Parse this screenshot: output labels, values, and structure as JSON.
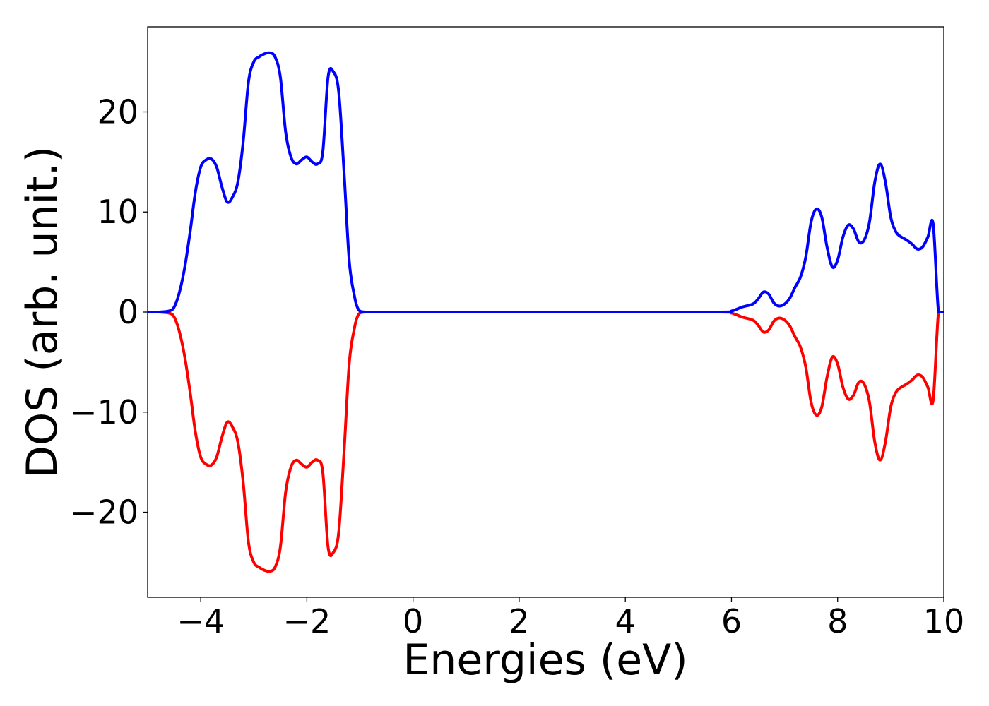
{
  "chart_data": {
    "type": "line",
    "title": "",
    "xlabel": "Energies (eV)",
    "ylabel": "DOS (arb. unit.)",
    "xlim": [
      -5,
      10
    ],
    "ylim": [
      -28.5,
      28.5
    ],
    "x_ticks": [
      -4,
      -2,
      0,
      2,
      4,
      6,
      8,
      10
    ],
    "x_tick_labels": [
      "−4",
      "−2",
      "0",
      "2",
      "4",
      "6",
      "8",
      "10"
    ],
    "y_ticks": [
      -20,
      -10,
      0,
      10,
      20
    ],
    "y_tick_labels": [
      "−20",
      "−10",
      "0",
      "10",
      "20"
    ],
    "grid": false,
    "legend": "none",
    "series": [
      {
        "color": "#0000ff",
        "x": [
          -5.0,
          -4.8,
          -4.6,
          -4.5,
          -4.4,
          -4.3,
          -4.2,
          -4.1,
          -4.0,
          -3.9,
          -3.8,
          -3.7,
          -3.6,
          -3.5,
          -3.4,
          -3.3,
          -3.2,
          -3.1,
          -3.0,
          -2.9,
          -2.8,
          -2.7,
          -2.6,
          -2.5,
          -2.4,
          -2.3,
          -2.2,
          -2.1,
          -2.0,
          -1.9,
          -1.8,
          -1.7,
          -1.6,
          -1.5,
          -1.4,
          -1.3,
          -1.2,
          -1.1,
          -1.05,
          -1.0,
          -0.9,
          -0.8,
          -0.7,
          -0.6,
          -0.5,
          0.0,
          2.0,
          4.0,
          5.8,
          6.0,
          6.2,
          6.4,
          6.5,
          6.6,
          6.7,
          6.8,
          6.9,
          7.0,
          7.1,
          7.2,
          7.3,
          7.4,
          7.5,
          7.6,
          7.7,
          7.8,
          7.9,
          8.0,
          8.1,
          8.2,
          8.3,
          8.4,
          8.5,
          8.6,
          8.7,
          8.8,
          8.9,
          9.0,
          9.1,
          9.2,
          9.3,
          9.4,
          9.5,
          9.6,
          9.7,
          9.8,
          9.9,
          10.0
        ],
        "values": [
          0,
          0,
          0.1,
          0.5,
          2.0,
          4.5,
          8.0,
          12.0,
          14.5,
          15.2,
          15.3,
          14.5,
          12.5,
          11.0,
          11.5,
          13.0,
          17.0,
          23.0,
          25.0,
          25.5,
          25.8,
          25.9,
          25.5,
          23.5,
          18.0,
          15.5,
          14.8,
          15.2,
          15.5,
          15.0,
          14.8,
          16.0,
          23.5,
          24.0,
          22.0,
          14.0,
          5.0,
          1.5,
          0.5,
          0.1,
          0,
          0,
          0,
          0,
          0,
          0,
          0,
          0,
          0,
          0.1,
          0.5,
          0.8,
          1.3,
          2.0,
          1.8,
          0.9,
          0.6,
          0.8,
          1.4,
          2.5,
          3.5,
          5.5,
          9.0,
          10.3,
          9.5,
          6.5,
          4.5,
          5.2,
          7.5,
          8.7,
          8.3,
          7.0,
          7.2,
          9.0,
          13.0,
          14.8,
          13.0,
          9.5,
          8.0,
          7.5,
          7.2,
          6.8,
          6.3,
          6.5,
          7.5,
          8.8,
          0,
          0
        ],
        "note_drop": "",
        "series_skip": 2
      },
      {
        "color": "#ff0000",
        "x": [
          -5.0,
          -4.8,
          -4.6,
          -4.5,
          -4.4,
          -4.3,
          -4.2,
          -4.1,
          -4.0,
          -3.9,
          -3.8,
          -3.7,
          -3.6,
          -3.5,
          -3.4,
          -3.3,
          -3.2,
          -3.1,
          -3.0,
          -2.9,
          -2.8,
          -2.7,
          -2.6,
          -2.5,
          -2.4,
          -2.3,
          -2.2,
          -2.1,
          -2.0,
          -1.9,
          -1.8,
          -1.7,
          -1.6,
          -1.5,
          -1.4,
          -1.3,
          -1.2,
          -1.1,
          -1.05,
          -1.0,
          -0.9,
          -0.8,
          -0.7,
          -0.6,
          -0.5,
          0.0,
          2.0,
          4.0,
          5.8,
          6.0,
          6.2,
          6.4,
          6.5,
          6.6,
          6.7,
          6.8,
          6.9,
          7.0,
          7.1,
          7.2,
          7.3,
          7.4,
          7.5,
          7.6,
          7.7,
          7.8,
          7.9,
          8.0,
          8.1,
          8.2,
          8.3,
          8.4,
          8.5,
          8.6,
          8.7,
          8.8,
          8.9,
          9.0,
          9.1,
          9.2,
          9.3,
          9.4,
          9.5,
          9.6,
          9.7,
          9.8,
          9.9,
          10.0
        ],
        "values": [
          0,
          0,
          -0.1,
          -0.5,
          -2.0,
          -4.5,
          -8.0,
          -12.0,
          -14.5,
          -15.2,
          -15.3,
          -14.5,
          -12.5,
          -11.0,
          -11.5,
          -13.0,
          -17.0,
          -23.0,
          -25.0,
          -25.5,
          -25.8,
          -25.9,
          -25.5,
          -23.5,
          -18.0,
          -15.5,
          -14.8,
          -15.2,
          -15.5,
          -15.0,
          -14.8,
          -16.0,
          -23.5,
          -24.0,
          -22.0,
          -14.0,
          -5.0,
          -1.5,
          -0.5,
          -0.1,
          0,
          0,
          0,
          0,
          0,
          0,
          0,
          0,
          0,
          -0.1,
          -0.5,
          -0.8,
          -1.3,
          -2.0,
          -1.8,
          -0.9,
          -0.6,
          -0.8,
          -1.4,
          -2.5,
          -3.5,
          -5.5,
          -9.0,
          -10.3,
          -9.5,
          -6.5,
          -4.5,
          -5.2,
          -7.5,
          -8.7,
          -8.3,
          -7.0,
          -7.2,
          -9.0,
          -13.0,
          -14.8,
          -13.0,
          -9.5,
          -8.0,
          -7.5,
          -7.2,
          -6.8,
          -6.3,
          -6.5,
          -7.5,
          -8.8,
          0,
          0
        ]
      }
    ]
  }
}
